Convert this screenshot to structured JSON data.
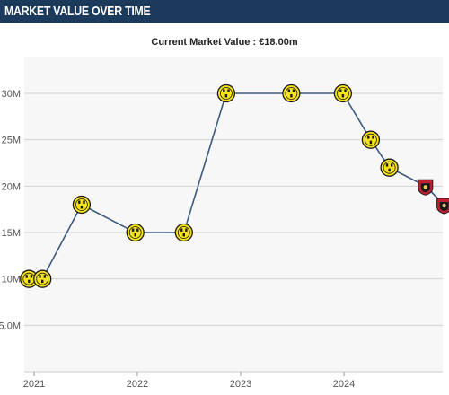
{
  "header": {
    "title": "MARKET VALUE OVER TIME"
  },
  "chart_data": {
    "type": "line",
    "title": "",
    "subtitle": "Current Market Value : €18.00m",
    "xlabel": "",
    "ylabel": "",
    "ylim": [
      0,
      30
    ],
    "y_ticks": [
      {
        "value": 5,
        "label": "5.0M"
      },
      {
        "value": 10,
        "label": "10M"
      },
      {
        "value": 15,
        "label": "15M"
      },
      {
        "value": 20,
        "label": "20M"
      },
      {
        "value": 25,
        "label": "25M"
      },
      {
        "value": 30,
        "label": "30M"
      }
    ],
    "x_ticks": [
      {
        "value": 2021.0,
        "label": "2021"
      },
      {
        "value": 2022.0,
        "label": "2022"
      },
      {
        "value": 2023.0,
        "label": "2023"
      },
      {
        "value": 2024.0,
        "label": "2024"
      }
    ],
    "xlim": [
      2020.95,
      2025.0
    ],
    "grid": true,
    "line_color": "#3d5a80",
    "series": [
      {
        "points": [
          {
            "x": 2020.95,
            "y": 10,
            "club": "bvb"
          },
          {
            "x": 2021.08,
            "y": 10,
            "club": "bvb"
          },
          {
            "x": 2021.46,
            "y": 18,
            "club": "bvb"
          },
          {
            "x": 2021.98,
            "y": 15,
            "club": "bvb"
          },
          {
            "x": 2022.45,
            "y": 15,
            "club": "bvb"
          },
          {
            "x": 2022.86,
            "y": 30,
            "club": "bvb"
          },
          {
            "x": 2023.49,
            "y": 30,
            "club": "bvb"
          },
          {
            "x": 2023.99,
            "y": 30,
            "club": "bvb"
          },
          {
            "x": 2024.26,
            "y": 25,
            "club": "bvb"
          },
          {
            "x": 2024.44,
            "y": 22,
            "club": "bvb"
          },
          {
            "x": 2024.79,
            "y": 20,
            "club": "nice"
          },
          {
            "x": 2024.97,
            "y": 18,
            "club": "nice"
          }
        ]
      }
    ]
  }
}
